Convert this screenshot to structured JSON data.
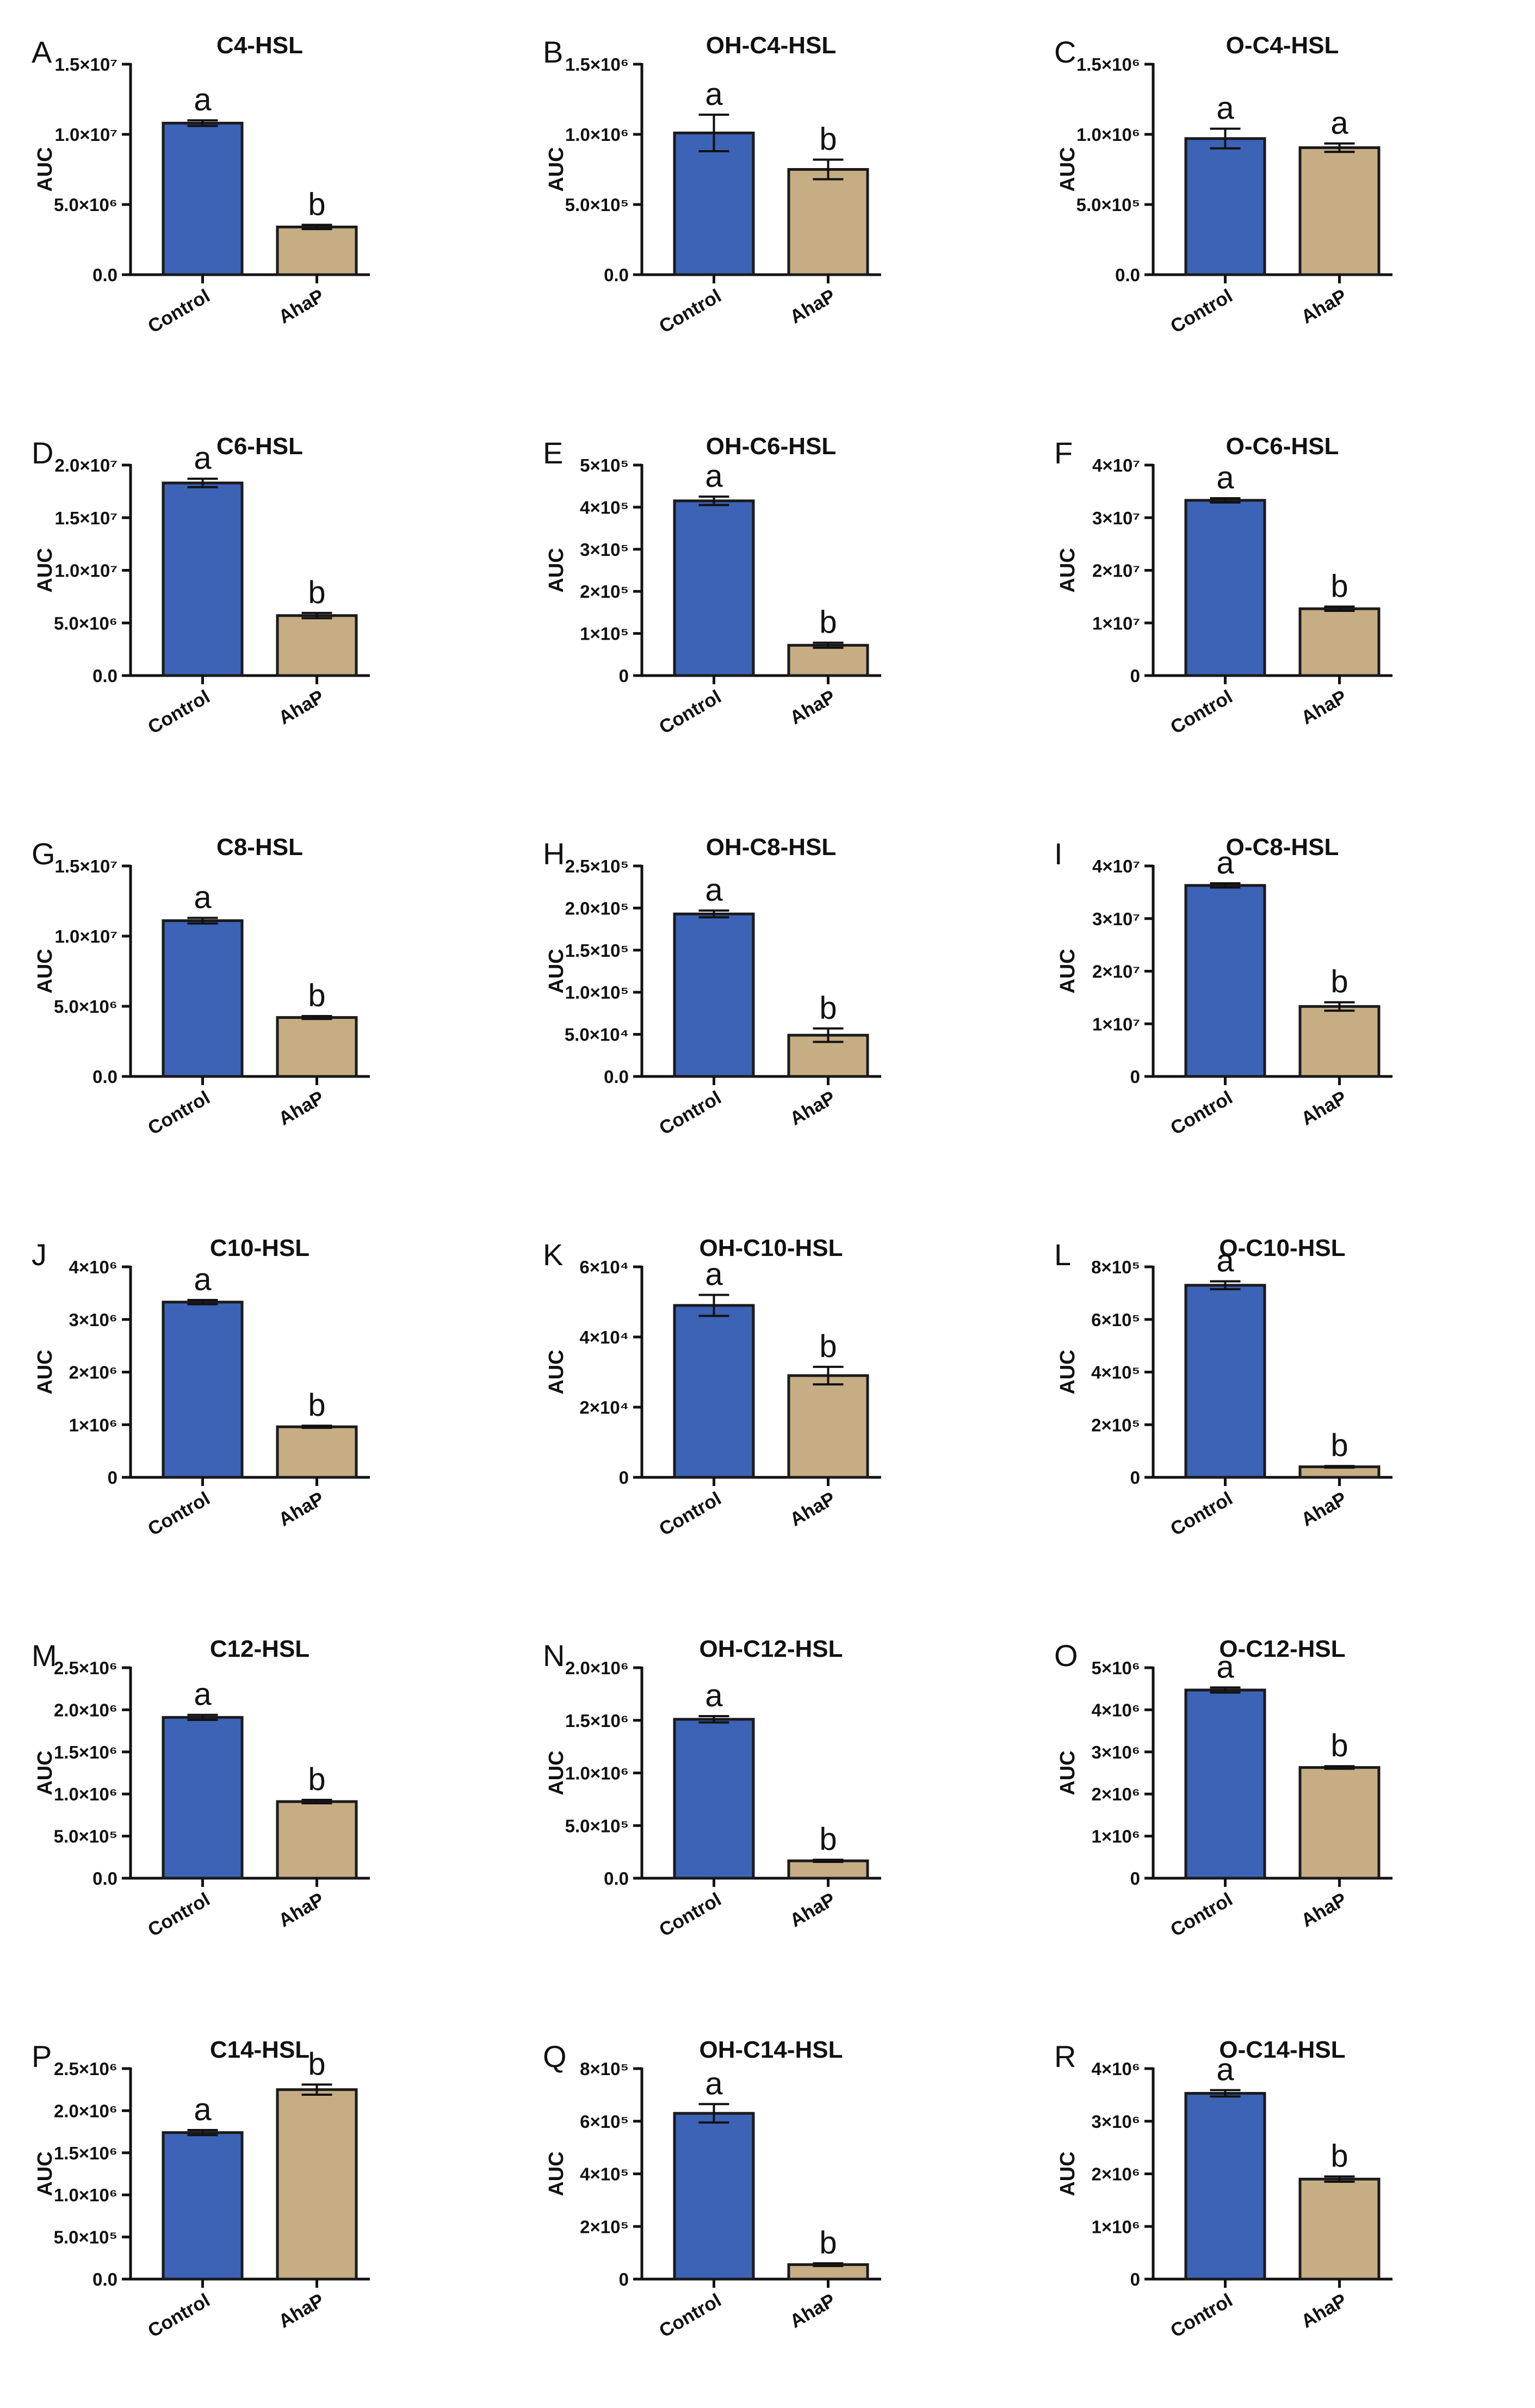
{
  "colors": {
    "control": "#3c63b5",
    "ahap": "#c6ad84",
    "edge": "#1a1a1a"
  },
  "categories": [
    "Control",
    "AhaP"
  ],
  "chart_data": [
    {
      "panel": "A",
      "type": "bar",
      "title": "C4-HSL",
      "ylabel": "AUC",
      "ylim": [
        0,
        15000000
      ],
      "yticks": [
        0,
        5000000,
        10000000,
        15000000
      ],
      "ytick_labels": [
        "0.0",
        "5.0×10⁶",
        "1.0×10⁷",
        "1.5×10⁷"
      ],
      "categories": [
        "Control",
        "AhaP"
      ],
      "values": [
        10800000,
        3400000
      ],
      "errors": [
        200000,
        150000
      ],
      "letters": [
        "a",
        "b"
      ]
    },
    {
      "panel": "B",
      "type": "bar",
      "title": "OH-C4-HSL",
      "ylabel": "AUC",
      "ylim": [
        0,
        1500000
      ],
      "yticks": [
        0,
        500000,
        1000000,
        1500000
      ],
      "ytick_labels": [
        "0.0",
        "5.0×10⁵",
        "1.0×10⁶",
        "1.5×10⁶"
      ],
      "categories": [
        "Control",
        "AhaP"
      ],
      "values": [
        1010000,
        750000
      ],
      "errors": [
        130000,
        70000
      ],
      "letters": [
        "a",
        "b"
      ]
    },
    {
      "panel": "C",
      "type": "bar",
      "title": "O-C4-HSL",
      "ylabel": "AUC",
      "ylim": [
        0,
        1500000
      ],
      "yticks": [
        0,
        500000,
        1000000,
        1500000
      ],
      "ytick_labels": [
        "0.0",
        "5.0×10⁵",
        "1.0×10⁶",
        "1.5×10⁶"
      ],
      "categories": [
        "Control",
        "AhaP"
      ],
      "values": [
        970000,
        905000
      ],
      "errors": [
        70000,
        30000
      ],
      "letters": [
        "a",
        "a"
      ]
    },
    {
      "panel": "D",
      "type": "bar",
      "title": "C6-HSL",
      "ylabel": "AUC",
      "ylim": [
        0,
        20000000
      ],
      "yticks": [
        0,
        5000000,
        10000000,
        15000000,
        20000000
      ],
      "ytick_labels": [
        "0.0",
        "5.0×10⁶",
        "1.0×10⁷",
        "1.5×10⁷",
        "2.0×10⁷"
      ],
      "categories": [
        "Control",
        "AhaP"
      ],
      "values": [
        18300000,
        5700000
      ],
      "errors": [
        400000,
        250000
      ],
      "letters": [
        "a",
        "b"
      ]
    },
    {
      "panel": "E",
      "type": "bar",
      "title": "OH-C6-HSL",
      "ylabel": "AUC",
      "ylim": [
        0,
        500000
      ],
      "yticks": [
        0,
        100000,
        200000,
        300000,
        400000,
        500000
      ],
      "ytick_labels": [
        "0",
        "1×10⁵",
        "2×10⁵",
        "3×10⁵",
        "4×10⁵",
        "5×10⁵"
      ],
      "categories": [
        "Control",
        "AhaP"
      ],
      "values": [
        415000,
        72000
      ],
      "errors": [
        10000,
        6000
      ],
      "letters": [
        "a",
        "b"
      ]
    },
    {
      "panel": "F",
      "type": "bar",
      "title": "O-C6-HSL",
      "ylabel": "AUC",
      "ylim": [
        0,
        40000000
      ],
      "yticks": [
        0,
        10000000,
        20000000,
        30000000,
        40000000
      ],
      "ytick_labels": [
        "0",
        "1×10⁷",
        "2×10⁷",
        "3×10⁷",
        "4×10⁷"
      ],
      "categories": [
        "Control",
        "AhaP"
      ],
      "values": [
        33300000,
        12700000
      ],
      "errors": [
        400000,
        400000
      ],
      "letters": [
        "a",
        "b"
      ]
    },
    {
      "panel": "G",
      "type": "bar",
      "title": "C8-HSL",
      "ylabel": "AUC",
      "ylim": [
        0,
        15000000
      ],
      "yticks": [
        0,
        5000000,
        10000000,
        15000000
      ],
      "ytick_labels": [
        "0.0",
        "5.0×10⁶",
        "1.0×10⁷",
        "1.5×10⁷"
      ],
      "categories": [
        "Control",
        "AhaP"
      ],
      "values": [
        11100000,
        4200000
      ],
      "errors": [
        200000,
        100000
      ],
      "letters": [
        "a",
        "b"
      ]
    },
    {
      "panel": "H",
      "type": "bar",
      "title": "OH-C8-HSL",
      "ylabel": "AUC",
      "ylim": [
        0,
        250000
      ],
      "yticks": [
        0,
        50000,
        100000,
        150000,
        200000,
        250000
      ],
      "ytick_labels": [
        "0.0",
        "5.0×10⁴",
        "1.0×10⁵",
        "1.5×10⁵",
        "2.0×10⁵",
        "2.5×10⁵"
      ],
      "categories": [
        "Control",
        "AhaP"
      ],
      "values": [
        193000,
        49000
      ],
      "errors": [
        4000,
        8000
      ],
      "letters": [
        "a",
        "b"
      ]
    },
    {
      "panel": "I",
      "type": "bar",
      "title": "O-C8-HSL",
      "ylabel": "AUC",
      "ylim": [
        0,
        40000000
      ],
      "yticks": [
        0,
        10000000,
        20000000,
        30000000,
        40000000
      ],
      "ytick_labels": [
        "0",
        "1×10⁷",
        "2×10⁷",
        "3×10⁷",
        "4×10⁷"
      ],
      "categories": [
        "Control",
        "AhaP"
      ],
      "values": [
        36300000,
        13300000
      ],
      "errors": [
        400000,
        800000
      ],
      "letters": [
        "a",
        "b"
      ]
    },
    {
      "panel": "J",
      "type": "bar",
      "title": "C10-HSL",
      "ylabel": "AUC",
      "ylim": [
        0,
        4000000
      ],
      "yticks": [
        0,
        1000000,
        2000000,
        3000000,
        4000000
      ],
      "ytick_labels": [
        "0",
        "1×10⁶",
        "2×10⁶",
        "3×10⁶",
        "4×10⁶"
      ],
      "categories": [
        "Control",
        "AhaP"
      ],
      "values": [
        3330000,
        960000
      ],
      "errors": [
        40000,
        20000
      ],
      "letters": [
        "a",
        "b"
      ]
    },
    {
      "panel": "K",
      "type": "bar",
      "title": "OH-C10-HSL",
      "ylabel": "AUC",
      "ylim": [
        0,
        60000
      ],
      "yticks": [
        0,
        20000,
        40000,
        60000
      ],
      "ytick_labels": [
        "0",
        "2×10⁴",
        "4×10⁴",
        "6×10⁴"
      ],
      "categories": [
        "Control",
        "AhaP"
      ],
      "values": [
        49000,
        29000
      ],
      "errors": [
        3000,
        2500
      ],
      "letters": [
        "a",
        "b"
      ]
    },
    {
      "panel": "L",
      "type": "bar",
      "title": "O-C10-HSL",
      "ylabel": "AUC",
      "ylim": [
        0,
        800000
      ],
      "yticks": [
        0,
        200000,
        400000,
        600000,
        800000
      ],
      "ytick_labels": [
        "0",
        "2×10⁵",
        "4×10⁵",
        "6×10⁵",
        "8×10⁵"
      ],
      "categories": [
        "Control",
        "AhaP"
      ],
      "values": [
        730000,
        40000
      ],
      "errors": [
        15000,
        3000
      ],
      "letters": [
        "a",
        "b"
      ]
    },
    {
      "panel": "M",
      "type": "bar",
      "title": "C12-HSL",
      "ylabel": "AUC",
      "ylim": [
        0,
        2500000
      ],
      "yticks": [
        0,
        500000,
        1000000,
        1500000,
        2000000,
        2500000
      ],
      "ytick_labels": [
        "0.0",
        "5.0×10⁵",
        "1.0×10⁶",
        "1.5×10⁶",
        "2.0×10⁶",
        "2.5×10⁶"
      ],
      "categories": [
        "Control",
        "AhaP"
      ],
      "values": [
        1910000,
        910000
      ],
      "errors": [
        30000,
        20000
      ],
      "letters": [
        "a",
        "b"
      ]
    },
    {
      "panel": "N",
      "type": "bar",
      "title": "OH-C12-HSL",
      "ylabel": "AUC",
      "ylim": [
        0,
        2000000
      ],
      "yticks": [
        0,
        500000,
        1000000,
        1500000,
        2000000
      ],
      "ytick_labels": [
        "0.0",
        "5.0×10⁵",
        "1.0×10⁶",
        "1.5×10⁶",
        "2.0×10⁶"
      ],
      "categories": [
        "Control",
        "AhaP"
      ],
      "values": [
        1510000,
        165000
      ],
      "errors": [
        30000,
        10000
      ],
      "letters": [
        "a",
        "b"
      ]
    },
    {
      "panel": "O",
      "type": "bar",
      "title": "O-C12-HSL",
      "ylabel": "AUC",
      "ylim": [
        0,
        5000000
      ],
      "yticks": [
        0,
        1000000,
        2000000,
        3000000,
        4000000,
        5000000
      ],
      "ytick_labels": [
        "0",
        "1×10⁶",
        "2×10⁶",
        "3×10⁶",
        "4×10⁶",
        "5×10⁶"
      ],
      "categories": [
        "Control",
        "AhaP"
      ],
      "values": [
        4470000,
        2630000
      ],
      "errors": [
        60000,
        30000
      ],
      "letters": [
        "a",
        "b"
      ]
    },
    {
      "panel": "P",
      "type": "bar",
      "title": "C14-HSL",
      "ylabel": "AUC",
      "ylim": [
        0,
        2500000
      ],
      "yticks": [
        0,
        500000,
        1000000,
        1500000,
        2000000,
        2500000
      ],
      "ytick_labels": [
        "0.0",
        "5.0×10⁵",
        "1.0×10⁶",
        "1.5×10⁶",
        "2.0×10⁶",
        "2.5×10⁶"
      ],
      "categories": [
        "Control",
        "AhaP"
      ],
      "values": [
        1740000,
        2250000
      ],
      "errors": [
        30000,
        60000
      ],
      "letters": [
        "a",
        "b"
      ]
    },
    {
      "panel": "Q",
      "type": "bar",
      "title": "OH-C14-HSL",
      "ylabel": "AUC",
      "ylim": [
        0,
        800000
      ],
      "yticks": [
        0,
        200000,
        400000,
        600000,
        800000
      ],
      "ytick_labels": [
        "0",
        "2×10⁵",
        "4×10⁵",
        "6×10⁵",
        "8×10⁵"
      ],
      "categories": [
        "Control",
        "AhaP"
      ],
      "values": [
        630000,
        55000
      ],
      "errors": [
        35000,
        5000
      ],
      "letters": [
        "a",
        "b"
      ]
    },
    {
      "panel": "R",
      "type": "bar",
      "title": "O-C14-HSL",
      "ylabel": "AUC",
      "ylim": [
        0,
        4000000
      ],
      "yticks": [
        0,
        1000000,
        2000000,
        3000000,
        4000000
      ],
      "ytick_labels": [
        "0",
        "1×10⁶",
        "2×10⁶",
        "3×10⁶",
        "4×10⁶"
      ],
      "categories": [
        "Control",
        "AhaP"
      ],
      "values": [
        3530000,
        1900000
      ],
      "errors": [
        60000,
        50000
      ],
      "letters": [
        "a",
        "b"
      ]
    }
  ]
}
